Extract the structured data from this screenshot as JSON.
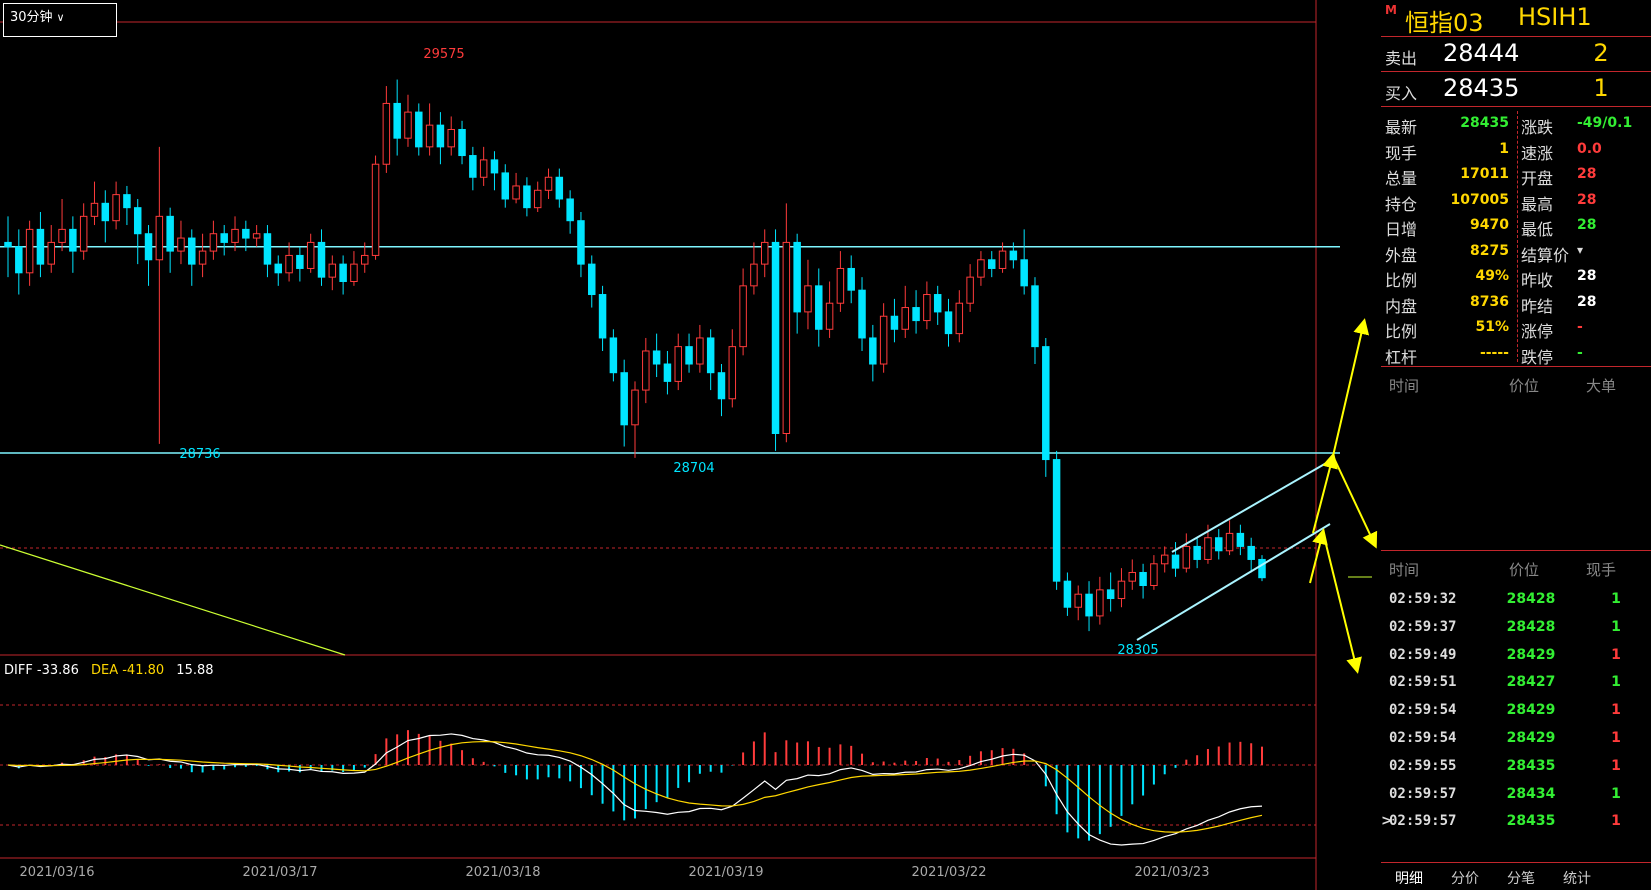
{
  "toolbar": {
    "period_label": "30分钟"
  },
  "macd": {
    "diff": "DIFF -33.86",
    "dea": "DEA -41.80",
    "macd": "15.88"
  },
  "colors": {
    "up": "#ff3b3b",
    "down": "#00e5ff",
    "grid": "#c2262c",
    "level": "#7ff6ff",
    "channel": "#aaf4ff",
    "arrow": "#ffff00",
    "ma": "#ccff33",
    "yellow": "#ffd700",
    "green": "#33ee33"
  },
  "chart_data": {
    "type": "candlestick",
    "dates": [
      "2021/03/16",
      "2021/03/17",
      "2021/03/18",
      "2021/03/19",
      "2021/03/22",
      "2021/03/23"
    ],
    "annotations": {
      "high_label": "29575",
      "low_label_1": "28736",
      "low_label_2": "28704",
      "low_label_3": "28305"
    },
    "price_range": [
      28250,
      29620
    ],
    "resistance_level": 29190,
    "support_level": 28715,
    "candles": [
      [
        29200,
        29190,
        29260,
        29120
      ],
      [
        29190,
        29130,
        29230,
        29080
      ],
      [
        29130,
        29230,
        29250,
        29100
      ],
      [
        29230,
        29150,
        29270,
        29120
      ],
      [
        29150,
        29200,
        29240,
        29130
      ],
      [
        29200,
        29230,
        29300,
        29180
      ],
      [
        29230,
        29180,
        29260,
        29130
      ],
      [
        29180,
        29260,
        29290,
        29160
      ],
      [
        29260,
        29290,
        29340,
        29240
      ],
      [
        29290,
        29250,
        29320,
        29200
      ],
      [
        29250,
        29310,
        29340,
        29230
      ],
      [
        29310,
        29280,
        29330,
        29240
      ],
      [
        29280,
        29220,
        29300,
        29150
      ],
      [
        29220,
        29160,
        29240,
        29100
      ],
      [
        29160,
        29260,
        29420,
        28736
      ],
      [
        29260,
        29180,
        29280,
        29130
      ],
      [
        29180,
        29210,
        29250,
        29150
      ],
      [
        29210,
        29150,
        29230,
        29100
      ],
      [
        29150,
        29180,
        29220,
        29120
      ],
      [
        29180,
        29220,
        29250,
        29160
      ],
      [
        29220,
        29200,
        29240,
        29170
      ],
      [
        29200,
        29230,
        29260,
        29180
      ],
      [
        29230,
        29210,
        29250,
        29180
      ],
      [
        29210,
        29220,
        29240,
        29190
      ],
      [
        29220,
        29150,
        29240,
        29120
      ],
      [
        29150,
        29130,
        29170,
        29100
      ],
      [
        29130,
        29170,
        29200,
        29110
      ],
      [
        29170,
        29140,
        29190,
        29110
      ],
      [
        29140,
        29200,
        29220,
        29130
      ],
      [
        29200,
        29120,
        29230,
        29100
      ],
      [
        29120,
        29150,
        29170,
        29090
      ],
      [
        29150,
        29110,
        29170,
        29080
      ],
      [
        29110,
        29150,
        29180,
        29100
      ],
      [
        29150,
        29170,
        29200,
        29130
      ],
      [
        29170,
        29380,
        29400,
        29160
      ],
      [
        29380,
        29520,
        29560,
        29360
      ],
      [
        29520,
        29440,
        29575,
        29400
      ],
      [
        29440,
        29500,
        29540,
        29420
      ],
      [
        29500,
        29420,
        29520,
        29400
      ],
      [
        29420,
        29470,
        29520,
        29400
      ],
      [
        29470,
        29420,
        29500,
        29380
      ],
      [
        29420,
        29460,
        29490,
        29400
      ],
      [
        29460,
        29400,
        29480,
        29380
      ],
      [
        29400,
        29350,
        29420,
        29320
      ],
      [
        29350,
        29390,
        29420,
        29330
      ],
      [
        29390,
        29360,
        29410,
        29320
      ],
      [
        29360,
        29300,
        29380,
        29280
      ],
      [
        29300,
        29330,
        29360,
        29290
      ],
      [
        29330,
        29280,
        29350,
        29260
      ],
      [
        29280,
        29320,
        29340,
        29270
      ],
      [
        29320,
        29350,
        29370,
        29300
      ],
      [
        29350,
        29300,
        29370,
        29280
      ],
      [
        29300,
        29250,
        29320,
        29220
      ],
      [
        29250,
        29150,
        29270,
        29120
      ],
      [
        29150,
        29080,
        29170,
        29050
      ],
      [
        29080,
        28980,
        29100,
        28950
      ],
      [
        28980,
        28900,
        29000,
        28880
      ],
      [
        28900,
        28780,
        28930,
        28730
      ],
      [
        28780,
        28860,
        28880,
        28704
      ],
      [
        28860,
        28950,
        28980,
        28830
      ],
      [
        28950,
        28920,
        28990,
        28890
      ],
      [
        28920,
        28880,
        28950,
        28850
      ],
      [
        28880,
        28960,
        28990,
        28860
      ],
      [
        28960,
        28920,
        28990,
        28900
      ],
      [
        28920,
        28980,
        29010,
        28900
      ],
      [
        28980,
        28900,
        29000,
        28860
      ],
      [
        28900,
        28840,
        28920,
        28800
      ],
      [
        28840,
        28960,
        29000,
        28820
      ],
      [
        28960,
        29100,
        29140,
        28940
      ],
      [
        29100,
        29150,
        29200,
        29080
      ],
      [
        29150,
        29200,
        29230,
        29120
      ],
      [
        29200,
        28760,
        29230,
        28720
      ],
      [
        28760,
        29200,
        29290,
        28740
      ],
      [
        29200,
        29040,
        29220,
        28990
      ],
      [
        29040,
        29100,
        29160,
        29000
      ],
      [
        29100,
        29000,
        29140,
        28960
      ],
      [
        29000,
        29060,
        29110,
        28980
      ],
      [
        29060,
        29140,
        29180,
        29040
      ],
      [
        29140,
        29090,
        29170,
        29060
      ],
      [
        29090,
        28980,
        29120,
        28950
      ],
      [
        28980,
        28920,
        29010,
        28880
      ],
      [
        28920,
        29030,
        29060,
        28900
      ],
      [
        29030,
        29000,
        29070,
        28970
      ],
      [
        29000,
        29050,
        29100,
        28980
      ],
      [
        29050,
        29020,
        29090,
        28990
      ],
      [
        29020,
        29080,
        29110,
        29000
      ],
      [
        29080,
        29040,
        29100,
        29010
      ],
      [
        29040,
        28990,
        29070,
        28960
      ],
      [
        28990,
        29060,
        29090,
        28970
      ],
      [
        29060,
        29120,
        29150,
        29040
      ],
      [
        29120,
        29160,
        29180,
        29100
      ],
      [
        29160,
        29140,
        29180,
        29120
      ],
      [
        29140,
        29180,
        29200,
        29130
      ],
      [
        29180,
        29160,
        29200,
        29140
      ],
      [
        29160,
        29100,
        29230,
        29080
      ],
      [
        29100,
        28960,
        29120,
        28920
      ],
      [
        28960,
        28700,
        28980,
        28660
      ],
      [
        28700,
        28420,
        28720,
        28400
      ],
      [
        28420,
        28360,
        28440,
        28340
      ],
      [
        28360,
        28390,
        28410,
        28330
      ],
      [
        28390,
        28340,
        28420,
        28305
      ],
      [
        28340,
        28400,
        28430,
        28320
      ],
      [
        28400,
        28380,
        28440,
        28350
      ],
      [
        28380,
        28420,
        28450,
        28360
      ],
      [
        28420,
        28440,
        28470,
        28400
      ],
      [
        28440,
        28410,
        28460,
        28380
      ],
      [
        28410,
        28460,
        28480,
        28400
      ],
      [
        28460,
        28480,
        28500,
        28440
      ],
      [
        28480,
        28450,
        28510,
        28430
      ],
      [
        28450,
        28500,
        28530,
        28440
      ],
      [
        28500,
        28470,
        28520,
        28450
      ],
      [
        28470,
        28520,
        28550,
        28460
      ],
      [
        28520,
        28490,
        28540,
        28470
      ],
      [
        28490,
        28530,
        28560,
        28480
      ],
      [
        28530,
        28500,
        28550,
        28480
      ],
      [
        28500,
        28470,
        28520,
        28440
      ],
      [
        28470,
        28428,
        28480,
        28420
      ]
    ]
  },
  "panel": {
    "m_badge": "M",
    "name": "恒指03",
    "code": "HSIH1",
    "sell": {
      "label": "卖出",
      "price": "28444",
      "qty": "2"
    },
    "buy": {
      "label": "买入",
      "price": "28435",
      "qty": "1"
    },
    "stats": [
      {
        "l1": "最新",
        "v1": "28435",
        "c1": "green",
        "l2": "涨跌",
        "v2": "-49/0.1",
        "c2": "green"
      },
      {
        "l1": "现手",
        "v1": "1",
        "c1": "yellow",
        "l2": "速涨",
        "v2": "0.0",
        "c2": "red"
      },
      {
        "l1": "总量",
        "v1": "17011",
        "c1": "yellow",
        "l2": "开盘",
        "v2": "28",
        "c2": "red"
      },
      {
        "l1": "持仓",
        "v1": "107005",
        "c1": "yellow",
        "l2": "最高",
        "v2": "28",
        "c2": "red"
      },
      {
        "l1": "日增",
        "v1": "9470",
        "c1": "yellow",
        "l2": "最低",
        "v2": "28",
        "c2": "green"
      },
      {
        "l1": "外盘",
        "v1": "8275",
        "c1": "yellow",
        "l2": "结算价",
        "v2": "",
        "c2": "white"
      },
      {
        "l1": "比例",
        "v1": "49%",
        "c1": "yellow",
        "l2": "昨收",
        "v2": "28",
        "c2": "white"
      },
      {
        "l1": "内盘",
        "v1": "8736",
        "c1": "yellow",
        "l2": "昨结",
        "v2": "28",
        "c2": "white"
      },
      {
        "l1": "比例",
        "v1": "51%",
        "c1": "yellow",
        "l2": "涨停",
        "v2": "-",
        "c2": "red"
      },
      {
        "l1": "杠杆",
        "v1": "-----",
        "c1": "yellow",
        "l2": "跌停",
        "v2": "-",
        "c2": "green"
      }
    ],
    "big_header": {
      "time": "时间",
      "price": "价位",
      "big": "大单"
    },
    "tick_header": {
      "time": "时间",
      "price": "价位",
      "qty": "现手"
    },
    "ticks": [
      {
        "time": "02:59:32",
        "price": "28428",
        "pc": "green",
        "qty": "1",
        "qc": "green"
      },
      {
        "time": "02:59:37",
        "price": "28428",
        "pc": "green",
        "qty": "1",
        "qc": "green"
      },
      {
        "time": "02:59:49",
        "price": "28429",
        "pc": "green",
        "qty": "1",
        "qc": "red"
      },
      {
        "time": "02:59:51",
        "price": "28427",
        "pc": "green",
        "qty": "1",
        "qc": "green"
      },
      {
        "time": "02:59:54",
        "price": "28429",
        "pc": "green",
        "qty": "1",
        "qc": "red"
      },
      {
        "time": "02:59:54",
        "price": "28429",
        "pc": "green",
        "qty": "1",
        "qc": "red"
      },
      {
        "time": "02:59:55",
        "price": "28435",
        "pc": "green",
        "qty": "1",
        "qc": "red"
      },
      {
        "time": "02:59:57",
        "price": "28434",
        "pc": "green",
        "qty": "1",
        "qc": "green"
      },
      {
        "time": "02:59:57",
        "price": "28435",
        "pc": "green",
        "qty": "1",
        "qc": "red"
      }
    ],
    "cursor_glyph": ">",
    "tabs": [
      "明细",
      "分价",
      "分笔",
      "统计"
    ]
  }
}
